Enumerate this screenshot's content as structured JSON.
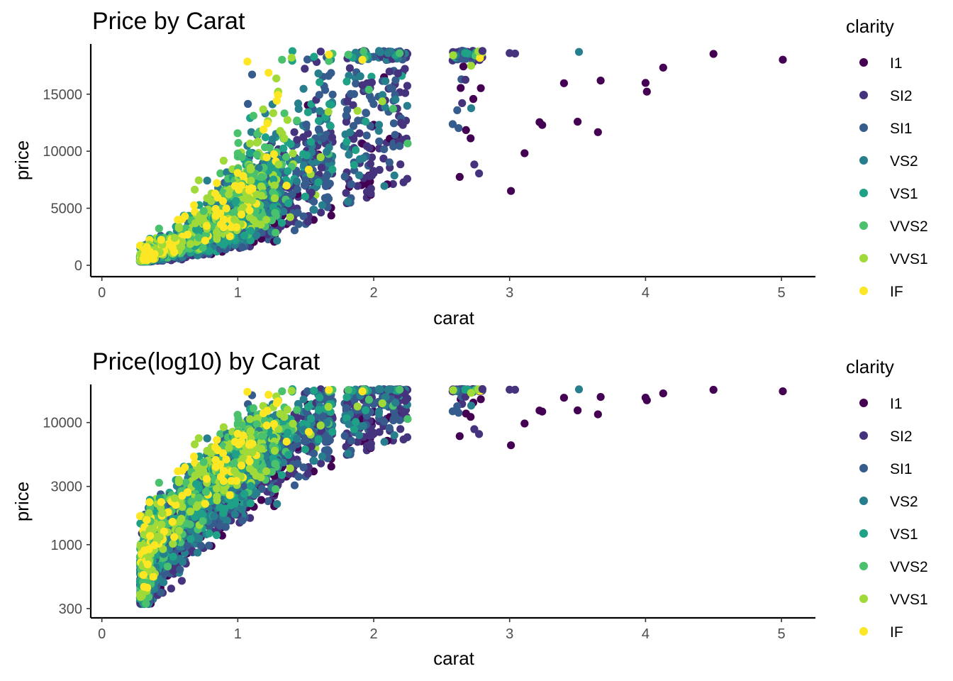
{
  "chart_data": [
    {
      "type": "scatter",
      "title": "Price by Carat",
      "xlabel": "carat",
      "ylabel": "price",
      "x_scale": "linear",
      "y_scale": "linear",
      "xlim": [
        -0.04,
        5.25
      ],
      "ylim": [
        -500,
        19400
      ],
      "x_ticks": [
        0,
        1,
        2,
        3,
        4,
        5
      ],
      "x_tick_labels": [
        "0",
        "1",
        "2",
        "3",
        "4",
        "5"
      ],
      "y_ticks": [
        0,
        5000,
        10000,
        15000
      ],
      "y_tick_labels": [
        "0",
        "5000",
        "10000",
        "15000"
      ],
      "grid": false,
      "legend": {
        "title": "clarity",
        "placement": "right",
        "entries": [
          {
            "label": "I1",
            "color": "#440154"
          },
          {
            "label": "SI2",
            "color": "#46337E"
          },
          {
            "label": "SI1",
            "color": "#365C8D"
          },
          {
            "label": "VS2",
            "color": "#277F8E"
          },
          {
            "label": "VS1",
            "color": "#1FA187"
          },
          {
            "label": "VVS2",
            "color": "#4AC16D"
          },
          {
            "label": "VVS1",
            "color": "#A0DA39"
          },
          {
            "label": "IF",
            "color": "#FDE725"
          }
        ]
      },
      "series_note_points": {
        "outliers": [
          {
            "clarity": "I1",
            "x": 5.01,
            "y": 18018
          },
          {
            "clarity": "I1",
            "x": 4.5,
            "y": 18531
          },
          {
            "clarity": "I1",
            "x": 4.13,
            "y": 17329
          },
          {
            "clarity": "I1",
            "x": 4.01,
            "y": 15223
          },
          {
            "clarity": "I1",
            "x": 4.0,
            "y": 15984
          },
          {
            "clarity": "I1",
            "x": 3.67,
            "y": 16193
          },
          {
            "clarity": "I1",
            "x": 3.65,
            "y": 11668
          },
          {
            "clarity": "I1",
            "x": 3.5,
            "y": 12587
          },
          {
            "clarity": "I1",
            "x": 3.4,
            "y": 15964
          },
          {
            "clarity": "I1",
            "x": 3.24,
            "y": 12300
          },
          {
            "clarity": "I1",
            "x": 3.22,
            "y": 12545
          },
          {
            "clarity": "I1",
            "x": 3.11,
            "y": 9823
          },
          {
            "clarity": "I1",
            "x": 3.01,
            "y": 6512
          },
          {
            "clarity": "VS2",
            "x": 3.51,
            "y": 18701
          },
          {
            "clarity": "SI2",
            "x": 3.0,
            "y": 18600
          },
          {
            "clarity": "SI2",
            "x": 3.04,
            "y": 18559
          },
          {
            "clarity": "SI2",
            "x": 2.8,
            "y": 18788
          }
        ]
      }
    },
    {
      "type": "scatter",
      "title": "Price(log10) by Carat",
      "xlabel": "carat",
      "ylabel": "price",
      "x_scale": "linear",
      "y_scale": "log10",
      "xlim": [
        -0.04,
        5.25
      ],
      "ylim": [
        280,
        20500
      ],
      "x_ticks": [
        0,
        1,
        2,
        3,
        4,
        5
      ],
      "x_tick_labels": [
        "0",
        "1",
        "2",
        "3",
        "4",
        "5"
      ],
      "y_ticks": [
        300,
        1000,
        3000,
        10000
      ],
      "y_tick_labels": [
        "300",
        "1000",
        "3000",
        "10000"
      ],
      "grid": false,
      "legend": {
        "title": "clarity",
        "placement": "right",
        "entries": [
          {
            "label": "I1",
            "color": "#440154"
          },
          {
            "label": "SI2",
            "color": "#46337E"
          },
          {
            "label": "SI1",
            "color": "#365C8D"
          },
          {
            "label": "VS2",
            "color": "#277F8E"
          },
          {
            "label": "VS1",
            "color": "#1FA187"
          },
          {
            "label": "VVS2",
            "color": "#4AC16D"
          },
          {
            "label": "VVS1",
            "color": "#A0DA39"
          },
          {
            "label": "IF",
            "color": "#FDE725"
          }
        ]
      }
    }
  ]
}
